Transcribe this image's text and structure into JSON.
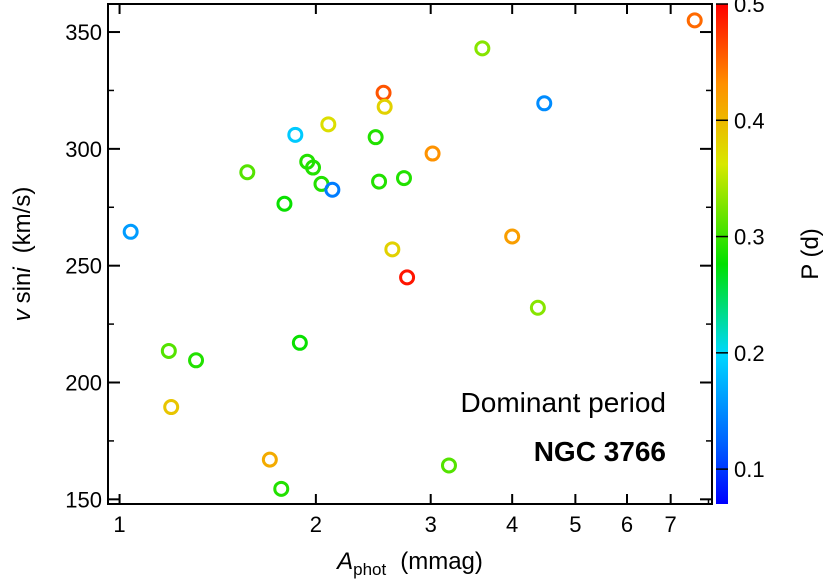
{
  "chart_data": {
    "type": "scatter",
    "x_axis": {
      "label_main": "A",
      "label_sub": "phot",
      "label_unit": "(mmag)",
      "scale": "log",
      "range": [
        0.96,
        8.1
      ],
      "ticks": [
        1,
        2,
        3,
        4,
        5,
        6,
        7
      ],
      "tick_labels": [
        "1",
        "2",
        "3",
        "4",
        "5",
        "6",
        "7"
      ]
    },
    "y_axis": {
      "label_v": "v",
      "label_sin": "sin",
      "label_i": "i",
      "label_unit": "(km/s)",
      "range": [
        148,
        362
      ],
      "ticks": [
        150,
        200,
        250,
        300,
        350
      ],
      "tick_labels": [
        "150",
        "200",
        "250",
        "300",
        "350"
      ]
    },
    "colorbar": {
      "label": "P (d)",
      "range": [
        0.07,
        0.5
      ],
      "ticks": [
        0.1,
        0.2,
        0.3,
        0.4,
        0.5
      ],
      "tick_labels": [
        "0.1",
        "0.2",
        "0.3",
        "0.4",
        "0.5"
      ],
      "colormap": "jet"
    },
    "annotations": {
      "line1": "Dominant period",
      "line2": "NGC 3766"
    },
    "grid": false,
    "points": [
      {
        "x": 1.04,
        "y": 264.5,
        "p": 0.16
      },
      {
        "x": 1.19,
        "y": 213.5,
        "p": 0.31
      },
      {
        "x": 1.2,
        "y": 189.5,
        "p": 0.39
      },
      {
        "x": 1.31,
        "y": 209.5,
        "p": 0.29
      },
      {
        "x": 1.57,
        "y": 290.0,
        "p": 0.31
      },
      {
        "x": 1.7,
        "y": 167.0,
        "p": 0.41
      },
      {
        "x": 1.77,
        "y": 154.5,
        "p": 0.29
      },
      {
        "x": 1.79,
        "y": 276.5,
        "p": 0.28
      },
      {
        "x": 1.86,
        "y": 306.0,
        "p": 0.19
      },
      {
        "x": 1.89,
        "y": 217.0,
        "p": 0.28
      },
      {
        "x": 1.94,
        "y": 294.5,
        "p": 0.29
      },
      {
        "x": 1.98,
        "y": 292.0,
        "p": 0.29
      },
      {
        "x": 2.04,
        "y": 285.0,
        "p": 0.29
      },
      {
        "x": 2.09,
        "y": 310.5,
        "p": 0.37
      },
      {
        "x": 2.12,
        "y": 282.5,
        "p": 0.14
      },
      {
        "x": 2.47,
        "y": 305.0,
        "p": 0.29
      },
      {
        "x": 2.5,
        "y": 286.0,
        "p": 0.29
      },
      {
        "x": 2.54,
        "y": 324.0,
        "p": 0.46
      },
      {
        "x": 2.55,
        "y": 318.0,
        "p": 0.38
      },
      {
        "x": 2.62,
        "y": 257.0,
        "p": 0.38
      },
      {
        "x": 2.73,
        "y": 287.5,
        "p": 0.29
      },
      {
        "x": 2.76,
        "y": 245.0,
        "p": 0.49
      },
      {
        "x": 3.02,
        "y": 298.0,
        "p": 0.43
      },
      {
        "x": 3.2,
        "y": 164.5,
        "p": 0.31
      },
      {
        "x": 3.6,
        "y": 343.0,
        "p": 0.33
      },
      {
        "x": 4.0,
        "y": 262.5,
        "p": 0.42
      },
      {
        "x": 4.38,
        "y": 232.0,
        "p": 0.33
      },
      {
        "x": 4.48,
        "y": 319.5,
        "p": 0.15
      },
      {
        "x": 7.62,
        "y": 355.0,
        "p": 0.45
      }
    ]
  }
}
